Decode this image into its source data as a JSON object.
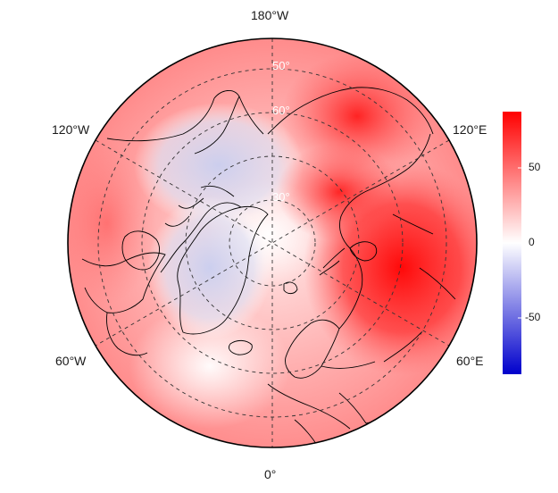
{
  "map": {
    "projection": "polar-stereographic-north",
    "longitude_labels": {
      "top": "180°W",
      "upper_left": "120°W",
      "upper_right": "120°E",
      "lower_left": "60°W",
      "lower_right": "60°E",
      "bottom": "0°"
    },
    "latitude_labels": [
      "30°",
      "60°",
      "50°"
    ],
    "gridlines": "dashed",
    "coastlines": true
  },
  "colorbar": {
    "ticks": [
      "50",
      "0",
      "-50"
    ],
    "range": [
      -90,
      90
    ],
    "colors": {
      "max": "#ff0000",
      "mid": "#ffffff",
      "min": "#0000cc"
    }
  },
  "colors": {
    "strong_positive": "#ff1a1a",
    "moderate_positive": "#ff7a7a",
    "weak_positive": "#ffd6d6",
    "weak_negative": "#d8dcf2",
    "coast": "#000000"
  }
}
